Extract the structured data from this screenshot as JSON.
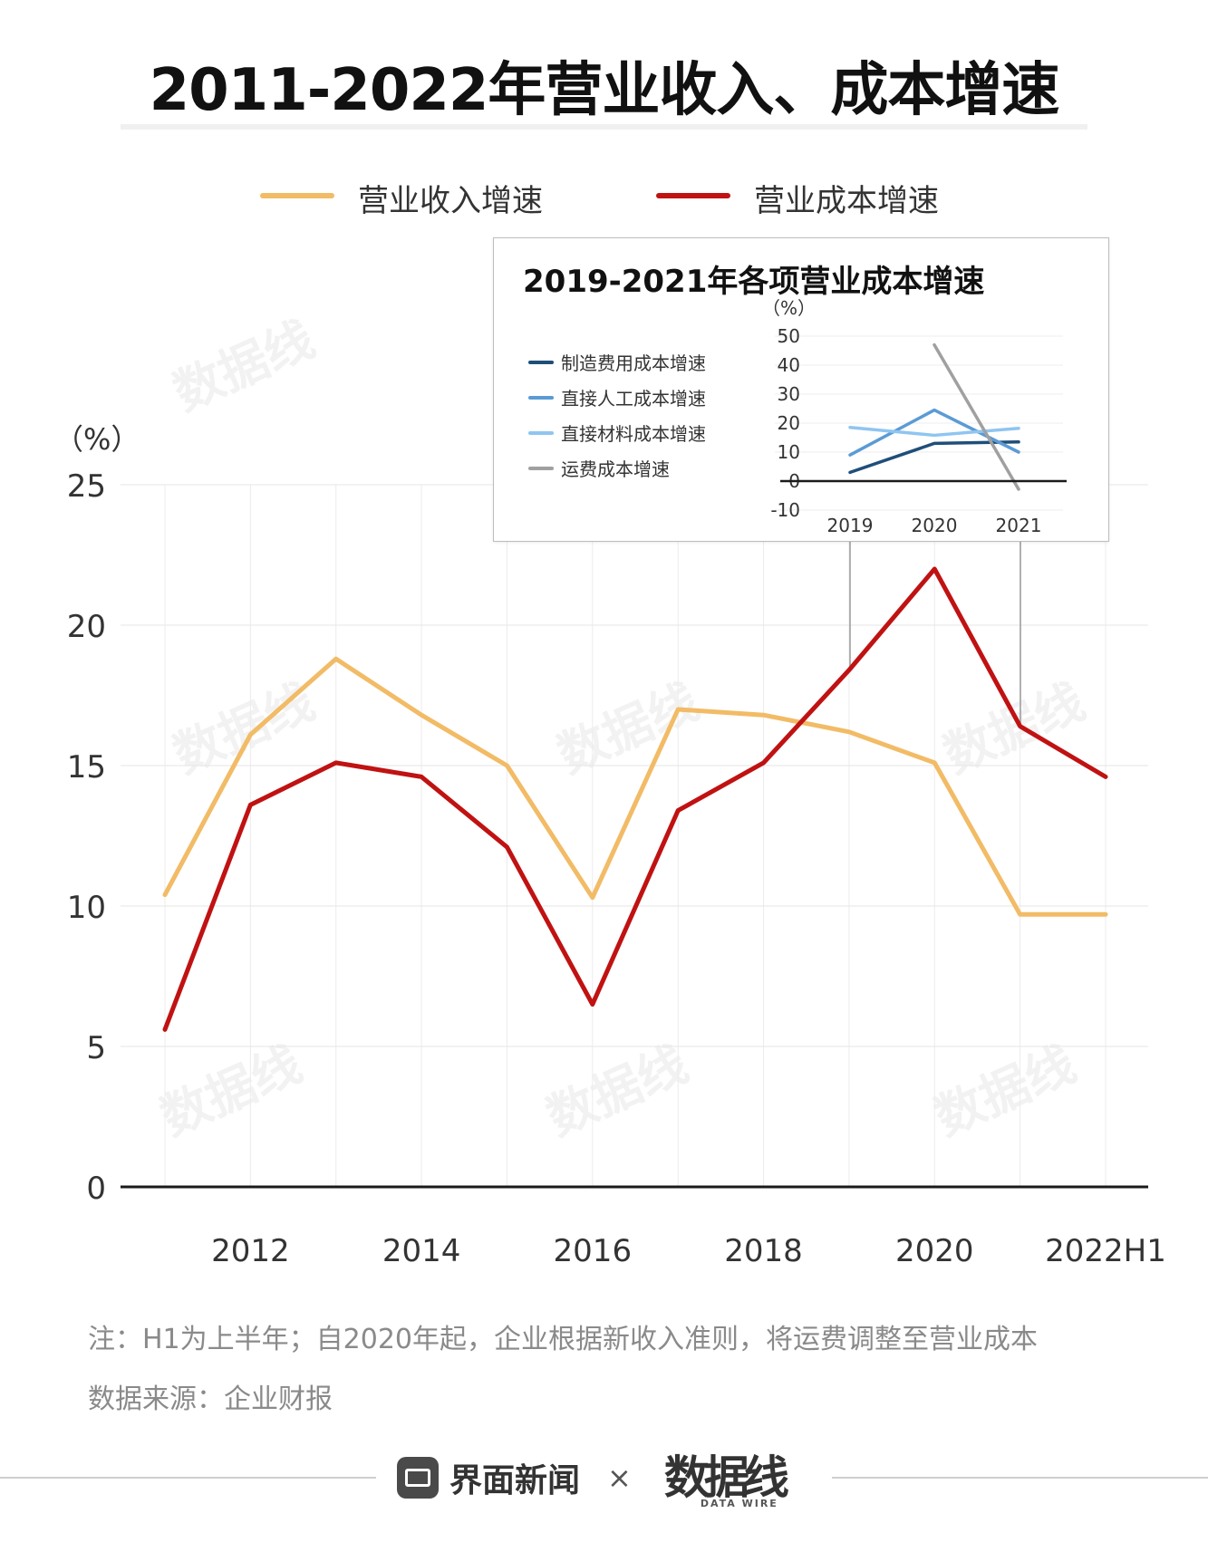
{
  "title": "2011-2022年营业收入、成本增速",
  "legend": [
    {
      "label": "营业收入增速",
      "color": "#f2bb66"
    },
    {
      "label": "营业成本增速",
      "color": "#c01212"
    }
  ],
  "chart_data": [
    {
      "type": "line",
      "ylabel": "（%）",
      "ylim": [
        0,
        25
      ],
      "yticks": [
        0,
        5,
        10,
        15,
        20,
        25
      ],
      "x": [
        "2011",
        "2012",
        "2013",
        "2014",
        "2015",
        "2016",
        "2017",
        "2018",
        "2019",
        "2020",
        "2021",
        "2022H1"
      ],
      "xtick_labels": [
        "",
        "2012",
        "",
        "2014",
        "",
        "2016",
        "",
        "2018",
        "",
        "2020",
        "",
        "2022H1"
      ],
      "grid": true,
      "series": [
        {
          "name": "营业收入增速",
          "color": "#f2bb66",
          "values": [
            10.4,
            16.1,
            18.8,
            16.8,
            15.0,
            10.3,
            17.0,
            16.8,
            16.2,
            15.1,
            9.7,
            9.7
          ]
        },
        {
          "name": "营业成本增速",
          "color": "#c01212",
          "values": [
            5.6,
            13.6,
            15.1,
            14.6,
            12.1,
            6.5,
            13.4,
            15.1,
            18.4,
            22.0,
            16.4,
            14.6
          ]
        }
      ]
    },
    {
      "type": "line",
      "title": "2019-2021年各项营业成本增速",
      "ylabel": "（%）",
      "ylim": [
        -10,
        50
      ],
      "yticks": [
        50,
        40,
        30,
        20,
        10,
        0,
        -10
      ],
      "x": [
        "2019",
        "2020",
        "2021"
      ],
      "series": [
        {
          "name": "制造费用成本增速",
          "color": "#1f4e79",
          "values": [
            3.0,
            13.0,
            13.5
          ]
        },
        {
          "name": "直接人工成本增速",
          "color": "#5b9bd5",
          "values": [
            9.0,
            24.5,
            10.0
          ]
        },
        {
          "name": "直接材料成本增速",
          "color": "#8fc5f0",
          "values": [
            18.5,
            15.8,
            18.2
          ]
        },
        {
          "name": "运费成本增速",
          "color": "#a0a0a0",
          "values": [
            null,
            47.0,
            -2.8
          ]
        }
      ]
    }
  ],
  "notes": {
    "note": "注：H1为上半年；自2020年起，企业根据新收入准则，将运费调整至营业成本",
    "source": "数据来源：企业财报"
  },
  "footer": {
    "brand": "界面新闻",
    "times": "×",
    "partner": "数据线",
    "partner_sub": "DATA WIRE"
  },
  "watermark_text": "数据线"
}
